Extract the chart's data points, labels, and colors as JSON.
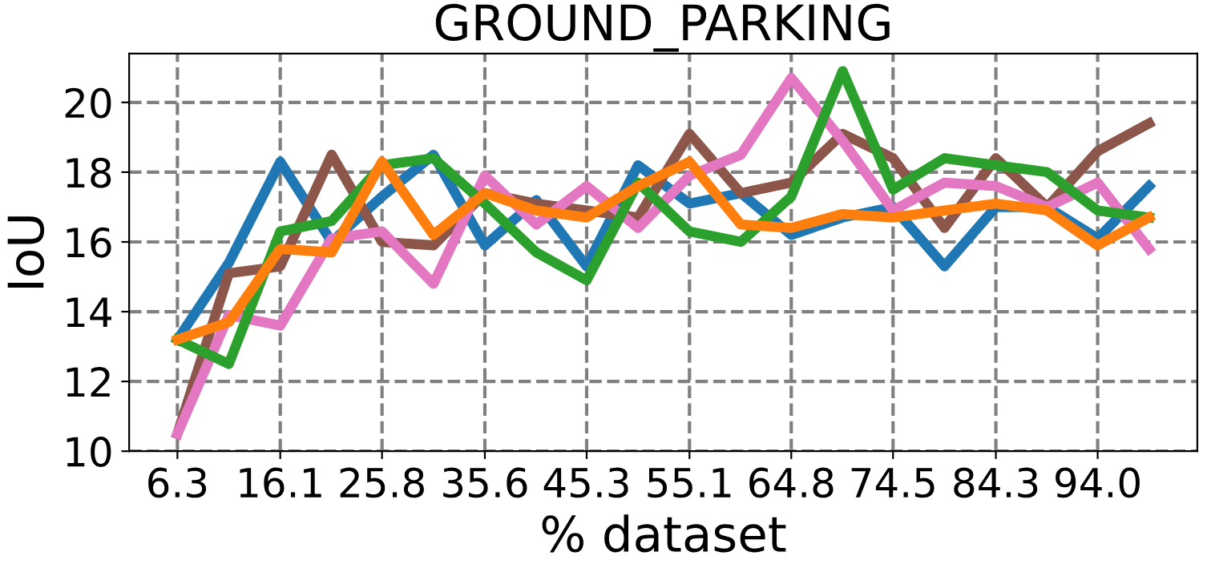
{
  "chart_data": {
    "type": "line",
    "title": "GROUND_PARKING",
    "xlabel": "% dataset",
    "ylabel": "IoU",
    "x": [
      6.3,
      11.2,
      16.1,
      21.0,
      25.8,
      30.7,
      35.6,
      40.5,
      45.3,
      50.2,
      55.1,
      60.0,
      64.8,
      69.7,
      74.5,
      79.4,
      84.3,
      89.2,
      94.0,
      98.9
    ],
    "series": [
      {
        "color": "#1f77b4",
        "values": [
          13.2,
          15.4,
          18.3,
          16.0,
          17.3,
          18.5,
          15.9,
          17.2,
          15.3,
          18.2,
          17.1,
          17.4,
          16.2,
          16.7,
          17.0,
          15.3,
          17.0,
          17.0,
          16.1,
          17.6
        ]
      },
      {
        "color": "#8c564b",
        "values": [
          10.5,
          15.1,
          15.3,
          18.5,
          16.0,
          15.9,
          17.4,
          17.1,
          16.9,
          16.7,
          19.1,
          17.4,
          17.7,
          19.1,
          18.4,
          16.4,
          18.4,
          17.0,
          18.6,
          19.4
        ]
      },
      {
        "color": "#e377c2",
        "values": [
          10.5,
          13.9,
          13.6,
          16.1,
          16.3,
          14.8,
          17.9,
          16.5,
          17.6,
          16.4,
          17.9,
          18.5,
          20.7,
          18.9,
          16.9,
          17.7,
          17.6,
          17.0,
          17.7,
          15.8
        ]
      },
      {
        "color": "#2ca02c",
        "values": [
          13.2,
          12.5,
          16.3,
          16.6,
          18.2,
          18.4,
          17.1,
          15.7,
          14.9,
          17.7,
          16.3,
          16.0,
          17.3,
          20.9,
          17.5,
          18.4,
          18.2,
          18.0,
          16.9,
          16.7
        ]
      },
      {
        "color": "#ff7f0e",
        "values": [
          13.2,
          13.7,
          15.8,
          15.7,
          18.3,
          16.2,
          17.4,
          16.9,
          16.7,
          17.6,
          18.3,
          16.5,
          16.4,
          16.8,
          16.7,
          16.9,
          17.1,
          16.9,
          15.9,
          16.7
        ]
      }
    ],
    "xlim": [
      1.7,
      103.5
    ],
    "xticks": [
      6.3,
      16.1,
      25.8,
      35.6,
      45.3,
      55.1,
      64.8,
      74.5,
      84.3,
      {
        "value": 94.0,
        "label": "94.0"
      }
    ],
    "ylim": [
      10,
      21.4
    ],
    "yticks": [
      10,
      12,
      14,
      16,
      18,
      20
    ],
    "grid": true,
    "line_style": "solid"
  }
}
